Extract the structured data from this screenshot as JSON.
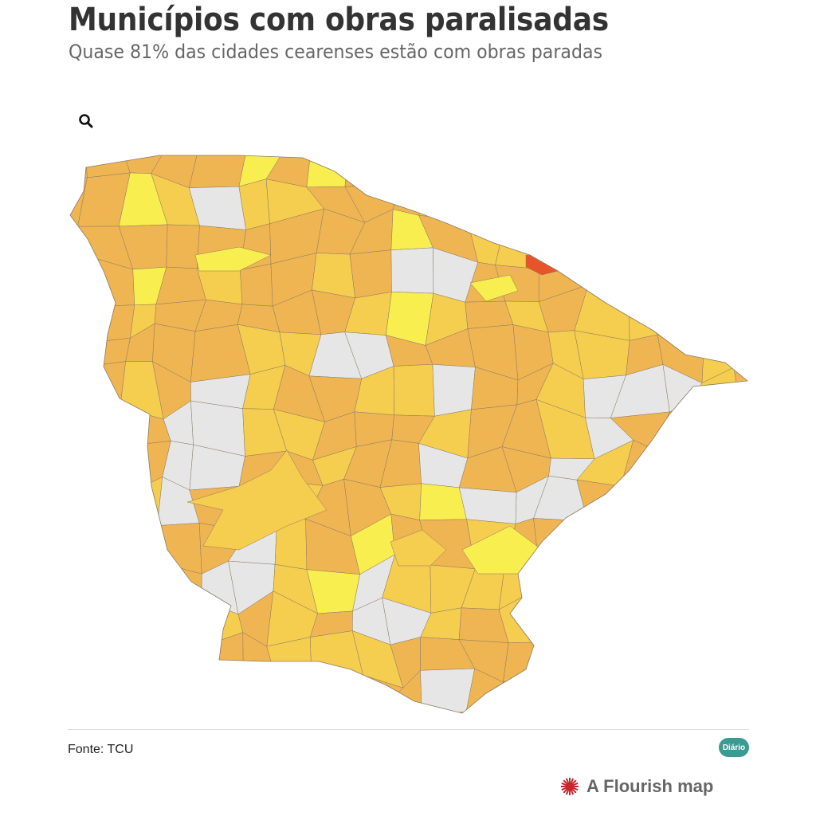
{
  "header": {
    "title": "Municípios com obras paralisadas",
    "subtitle": "Quase 81% das cidades cearenses estão com obras paradas"
  },
  "controls": {
    "search_icon": "search-icon"
  },
  "map": {
    "region": "Ceará",
    "colors": {
      "no_data": "#e6e6e6",
      "low": "#f0b553",
      "mid": "#f5cd4f",
      "light": "#f9ee4f",
      "high": "#e8542a",
      "border": "#8a7a60"
    }
  },
  "footer": {
    "source": "Fonte: TCU",
    "logo_text": "Diário",
    "credit": "A Flourish map",
    "credit_color": "#c4272e"
  }
}
